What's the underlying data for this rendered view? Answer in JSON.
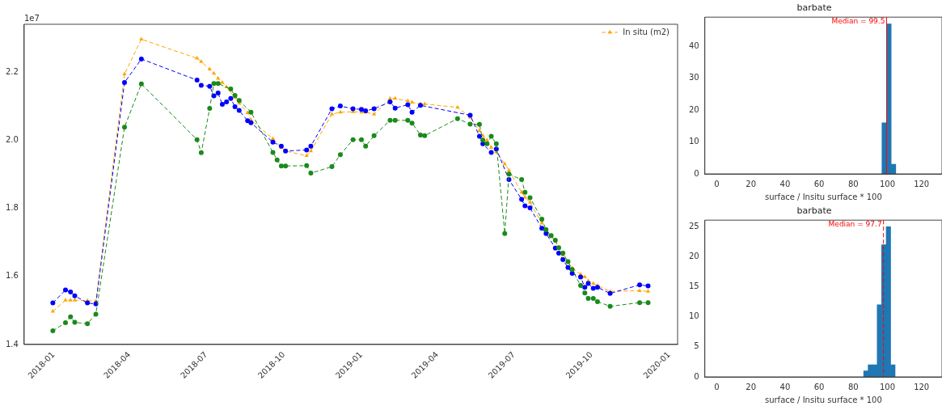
{
  "chart_data": [
    {
      "type": "line",
      "annotations": [
        "1e7"
      ],
      "legend": "top right",
      "grid": false,
      "line_style": "dashed",
      "xlim": [
        "2017-11-27",
        "2020-01-11"
      ],
      "xticks": [
        "2018-01",
        "2018-04",
        "2018-07",
        "2018-10",
        "2019-01",
        "2019-04",
        "2019-07",
        "2019-10",
        "2020-01"
      ],
      "ylim": [
        1.4,
        2.34
      ],
      "yticks": [
        1.4,
        1.6,
        1.8,
        {
          "value": 2,
          "label": "2.0"
        },
        2.2
      ],
      "series": [
        {
          "color": "#1a8a1a",
          "marker": "circle",
          "x": [
            "2017-12-31",
            "2018-01-15",
            "2018-01-21",
            "2018-01-26",
            "2018-02-10",
            "2018-02-20",
            "2018-03-26",
            "2018-04-15",
            "2018-06-20",
            "2018-06-25",
            "2018-07-05",
            "2018-07-10",
            "2018-07-15",
            "2018-07-30",
            "2018-08-04",
            "2018-08-09",
            "2018-08-23",
            "2018-09-18",
            "2018-09-23",
            "2018-09-28",
            "2018-10-03",
            "2018-10-28",
            "2018-11-02",
            "2018-11-27",
            "2018-12-07",
            "2018-12-22",
            "2019-01-01",
            "2019-01-06",
            "2019-01-16",
            "2019-02-04",
            "2019-02-10",
            "2019-02-25",
            "2019-03-02",
            "2019-03-12",
            "2019-03-17",
            "2019-04-25",
            "2019-05-10",
            "2019-05-21",
            "2019-05-25",
            "2019-05-30",
            "2019-06-04",
            "2019-06-10",
            "2019-06-20",
            "2019-06-25",
            "2019-07-10",
            "2019-07-14",
            "2019-07-20",
            "2019-08-03",
            "2019-08-08",
            "2019-08-14",
            "2019-08-19",
            "2019-08-23",
            "2019-08-28",
            "2019-09-03",
            "2019-09-08",
            "2019-09-18",
            "2019-09-23",
            "2019-09-27",
            "2019-10-03",
            "2019-10-08",
            "2019-10-23",
            "2019-11-27",
            "2019-12-07"
          ],
          "values": [
            1.44,
            1.464,
            1.481,
            1.465,
            1.461,
            1.489,
            2.038,
            2.165,
            2.001,
            1.963,
            2.093,
            2.166,
            2.166,
            2.15,
            2.131,
            2.116,
            2.082,
            1.964,
            1.942,
            1.924,
            1.924,
            1.925,
            1.903,
            1.922,
            1.957,
            2.001,
            2.001,
            1.982,
            2.013,
            2.058,
            2.058,
            2.058,
            2.05,
            2.015,
            2.013,
            2.063,
            2.047,
            2.046,
            2.0,
            1.989,
            2.011,
            1.989,
            1.726,
            1.9,
            1.884,
            1.847,
            1.831,
            1.768,
            1.737,
            1.72,
            1.706,
            1.684,
            1.668,
            1.643,
            1.62,
            1.573,
            1.551,
            1.535,
            1.535,
            1.526,
            1.512,
            1.523,
            1.523
          ]
        },
        {
          "color": "#0000ff",
          "marker": "circle",
          "x": [
            "2017-12-31",
            "2018-01-15",
            "2018-01-21",
            "2018-01-26",
            "2018-02-10",
            "2018-02-20",
            "2018-03-26",
            "2018-04-15",
            "2018-06-20",
            "2018-06-25",
            "2018-07-05",
            "2018-07-10",
            "2018-07-15",
            "2018-07-20",
            "2018-07-25",
            "2018-07-30",
            "2018-08-04",
            "2018-08-09",
            "2018-08-19",
            "2018-08-23",
            "2018-09-18",
            "2018-09-28",
            "2018-10-03",
            "2018-10-28",
            "2018-11-02",
            "2018-11-27",
            "2018-12-07",
            "2018-12-22",
            "2019-01-01",
            "2019-01-06",
            "2019-01-16",
            "2019-02-04",
            "2019-02-10",
            "2019-02-25",
            "2019-03-02",
            "2019-03-12",
            "2019-05-10",
            "2019-05-21",
            "2019-05-25",
            "2019-06-04",
            "2019-06-10",
            "2019-06-25",
            "2019-07-10",
            "2019-07-14",
            "2019-07-20",
            "2019-08-03",
            "2019-08-08",
            "2019-08-19",
            "2019-08-23",
            "2019-08-28",
            "2019-09-03",
            "2019-09-08",
            "2019-09-18",
            "2019-09-23",
            "2019-09-27",
            "2019-10-03",
            "2019-10-08",
            "2019-10-23",
            "2019-11-27",
            "2019-12-07"
          ],
          "values": [
            1.522,
            1.56,
            1.554,
            1.543,
            1.522,
            1.519,
            2.169,
            2.238,
            2.176,
            2.161,
            2.158,
            2.13,
            2.138,
            2.105,
            2.112,
            2.122,
            2.098,
            2.087,
            2.057,
            2.051,
            1.994,
            1.982,
            1.968,
            1.971,
            1.982,
            2.092,
            2.1,
            2.092,
            2.09,
            2.086,
            2.092,
            2.112,
            2.094,
            2.104,
            2.082,
            2.102,
            2.073,
            2.011,
            1.989,
            1.964,
            1.974,
            1.884,
            1.826,
            1.807,
            1.801,
            1.741,
            1.726,
            1.683,
            1.668,
            1.649,
            1.626,
            1.609,
            1.598,
            1.568,
            1.579,
            1.565,
            1.568,
            1.55,
            1.575,
            1.572
          ]
        },
        {
          "name": "In situ (m2)",
          "color": "#ffa500",
          "marker": "triangle",
          "x": [
            "2017-12-31",
            "2018-01-15",
            "2018-01-21",
            "2018-01-26",
            "2018-02-10",
            "2018-02-20",
            "2018-03-26",
            "2018-04-15",
            "2018-06-20",
            "2018-06-25",
            "2018-07-05",
            "2018-07-10",
            "2018-07-15",
            "2018-07-20",
            "2018-07-25",
            "2018-08-04",
            "2018-08-09",
            "2018-08-19",
            "2018-08-23",
            "2018-09-18",
            "2018-09-28",
            "2018-10-03",
            "2018-10-28",
            "2018-11-02",
            "2018-11-27",
            "2018-12-07",
            "2018-12-22",
            "2019-01-01",
            "2019-01-06",
            "2019-01-16",
            "2019-02-04",
            "2019-02-10",
            "2019-02-25",
            "2019-03-02",
            "2019-03-12",
            "2019-03-17",
            "2019-04-25",
            "2019-05-10",
            "2019-05-21",
            "2019-05-25",
            "2019-05-30",
            "2019-06-04",
            "2019-06-10",
            "2019-06-20",
            "2019-06-25",
            "2019-07-10",
            "2019-07-14",
            "2019-07-20",
            "2019-08-03",
            "2019-08-08",
            "2019-08-14",
            "2019-08-19",
            "2019-08-23",
            "2019-08-28",
            "2019-09-03",
            "2019-09-08",
            "2019-09-18",
            "2019-09-23",
            "2019-09-27",
            "2019-10-03",
            "2019-10-08",
            "2019-10-23",
            "2019-11-27",
            "2019-12-07"
          ],
          "values": [
            1.497,
            1.53,
            1.53,
            1.53,
            1.529,
            1.527,
            2.194,
            2.296,
            2.24,
            2.23,
            2.208,
            2.196,
            2.181,
            2.169,
            2.156,
            2.125,
            2.108,
            2.08,
            2.059,
            2.004,
            1.978,
            1.968,
            1.954,
            1.968,
            2.076,
            2.082,
            2.083,
            2.082,
            2.082,
            2.076,
            2.122,
            2.122,
            2.115,
            2.111,
            2.106,
            2.106,
            2.096,
            2.067,
            2.028,
            2.013,
            2.0,
            1.978,
            1.965,
            1.93,
            1.911,
            1.847,
            1.832,
            1.817,
            1.756,
            1.734,
            1.716,
            1.703,
            1.681,
            1.662,
            1.643,
            1.624,
            1.606,
            1.598,
            1.587,
            1.579,
            1.573,
            1.556,
            1.558,
            1.556
          ]
        }
      ]
    },
    {
      "type": "histogram",
      "title": "barbate",
      "xlabel": "surface / Insitu surface * 100",
      "color": "#1f77b4",
      "grid": false,
      "legend": false,
      "bins": [
        96.8,
        99.6,
        102.2,
        104.9
      ],
      "values": [
        16,
        47,
        3
      ],
      "xlim": [
        -7,
        132
      ],
      "xticks": [
        0,
        20,
        40,
        60,
        80,
        100,
        120
      ],
      "ylim": [
        0,
        49.1
      ],
      "yticks": [
        0,
        10,
        20,
        30,
        40
      ],
      "ref_lines": [
        {
          "axis": "x",
          "value": 99.5,
          "label": "Median = 99.5",
          "color": "#ff0000",
          "line_style": "solid"
        }
      ]
    },
    {
      "type": "histogram",
      "title": "barbate",
      "xlabel": "surface / Insitu surface * 100",
      "color": "#1f77b4",
      "grid": false,
      "legend": false,
      "bins": [
        86.1,
        88.7,
        91.4,
        94.0,
        96.6,
        99.3,
        101.9,
        104.5
      ],
      "values": [
        1,
        2,
        2,
        12,
        22,
        25,
        2
      ],
      "xlim": [
        -7,
        132
      ],
      "xticks": [
        0,
        20,
        40,
        60,
        80,
        100,
        120
      ],
      "ylim": [
        0,
        26.1
      ],
      "yticks": [
        0,
        5,
        10,
        15,
        20,
        25
      ],
      "ref_lines": [
        {
          "axis": "x",
          "value": 97.7,
          "label": "Median = 97.7",
          "color": "#ff0000",
          "line_style": "dashed"
        }
      ]
    }
  ]
}
